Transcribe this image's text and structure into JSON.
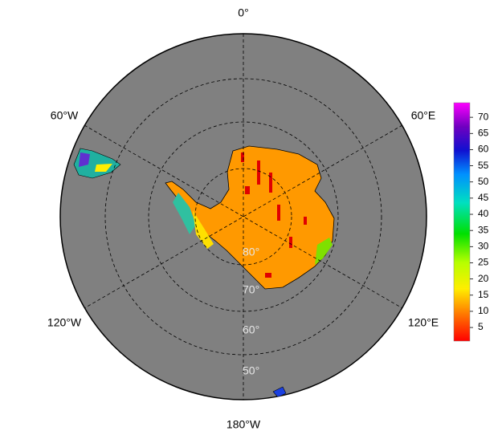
{
  "map": {
    "lon_labels": [
      "0°",
      "60°E",
      "120°E",
      "180°W",
      "120°W",
      "60°W"
    ],
    "lat_labels": [
      "80°",
      "70°",
      "60°",
      "50°"
    ],
    "colorbar": {
      "range": [
        0.8,
        74.5
      ],
      "ticks": [
        5,
        10,
        15,
        20,
        25,
        30,
        35,
        40,
        45,
        50,
        55,
        60,
        65,
        70
      ]
    }
  }
}
